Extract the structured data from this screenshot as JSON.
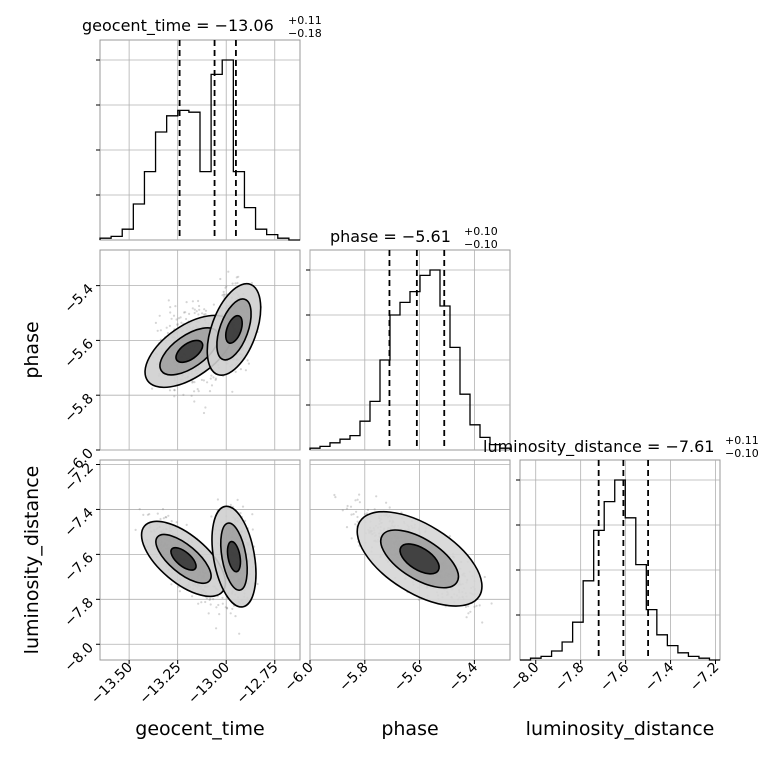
{
  "chart_data": {
    "type": "corner",
    "parameters": [
      {
        "name": "geocent_time",
        "xlabel": "geocent_time",
        "ylabel": "",
        "range": [
          -13.65,
          -12.62
        ],
        "ticks": [
          -13.5,
          -13.25,
          -13.0,
          -12.75
        ],
        "tick_labels": [
          "−13.50",
          "−13.25",
          "−13.00",
          "−12.75"
        ],
        "title_main": "geocent_time = −13.06",
        "title_sup": "+0.11",
        "title_sub": "−0.18",
        "quantiles": [
          -13.24,
          -13.06,
          -12.95
        ],
        "hist_relative": [
          0.01,
          0.02,
          0.06,
          0.2,
          0.38,
          0.6,
          0.69,
          0.72,
          0.71,
          0.38,
          0.92,
          1.0,
          0.38,
          0.18,
          0.06,
          0.03,
          0.01,
          0.0
        ]
      },
      {
        "name": "phase",
        "xlabel": "phase",
        "ylabel": "phase",
        "range": [
          -6.0,
          -5.27
        ],
        "ticks": [
          -6.0,
          -5.8,
          -5.6,
          -5.4
        ],
        "tick_labels": [
          "−6.0",
          "−5.8",
          "−5.6",
          "−5.4"
        ],
        "title_main": "phase = −5.61",
        "title_sup": "+0.10",
        "title_sub": "−0.10",
        "quantiles": [
          -5.71,
          -5.61,
          -5.51
        ],
        "hist_relative": [
          0.01,
          0.02,
          0.04,
          0.06,
          0.08,
          0.16,
          0.27,
          0.5,
          0.75,
          0.82,
          0.88,
          0.97,
          1.0,
          0.8,
          0.57,
          0.31,
          0.14,
          0.07,
          0.03,
          0.01
        ]
      },
      {
        "name": "luminosity_distance",
        "xlabel": "luminosity_distance",
        "ylabel": "luminosity_distance",
        "range": [
          -8.07,
          -7.18
        ],
        "ticks": [
          -8.0,
          -7.8,
          -7.6,
          -7.4,
          -7.2
        ],
        "tick_labels": [
          "−8.0",
          "−7.8",
          "−7.6",
          "−7.4",
          "−7.2"
        ],
        "y_ticks": [
          -8.0,
          -7.8,
          -7.6,
          -7.4,
          -7.2
        ],
        "title_main": "luminosity_distance = −7.61",
        "title_sup": "+0.11",
        "title_sub": "−0.10",
        "quantiles": [
          -7.72,
          -7.61,
          -7.5
        ],
        "hist_relative": [
          0.0,
          0.01,
          0.02,
          0.05,
          0.1,
          0.21,
          0.44,
          0.72,
          0.88,
          1.0,
          0.79,
          0.53,
          0.28,
          0.14,
          0.08,
          0.04,
          0.02,
          0.01,
          0.0
        ]
      }
    ],
    "scatter_color": "#888888",
    "hist_color": "#000000",
    "grid": true
  }
}
